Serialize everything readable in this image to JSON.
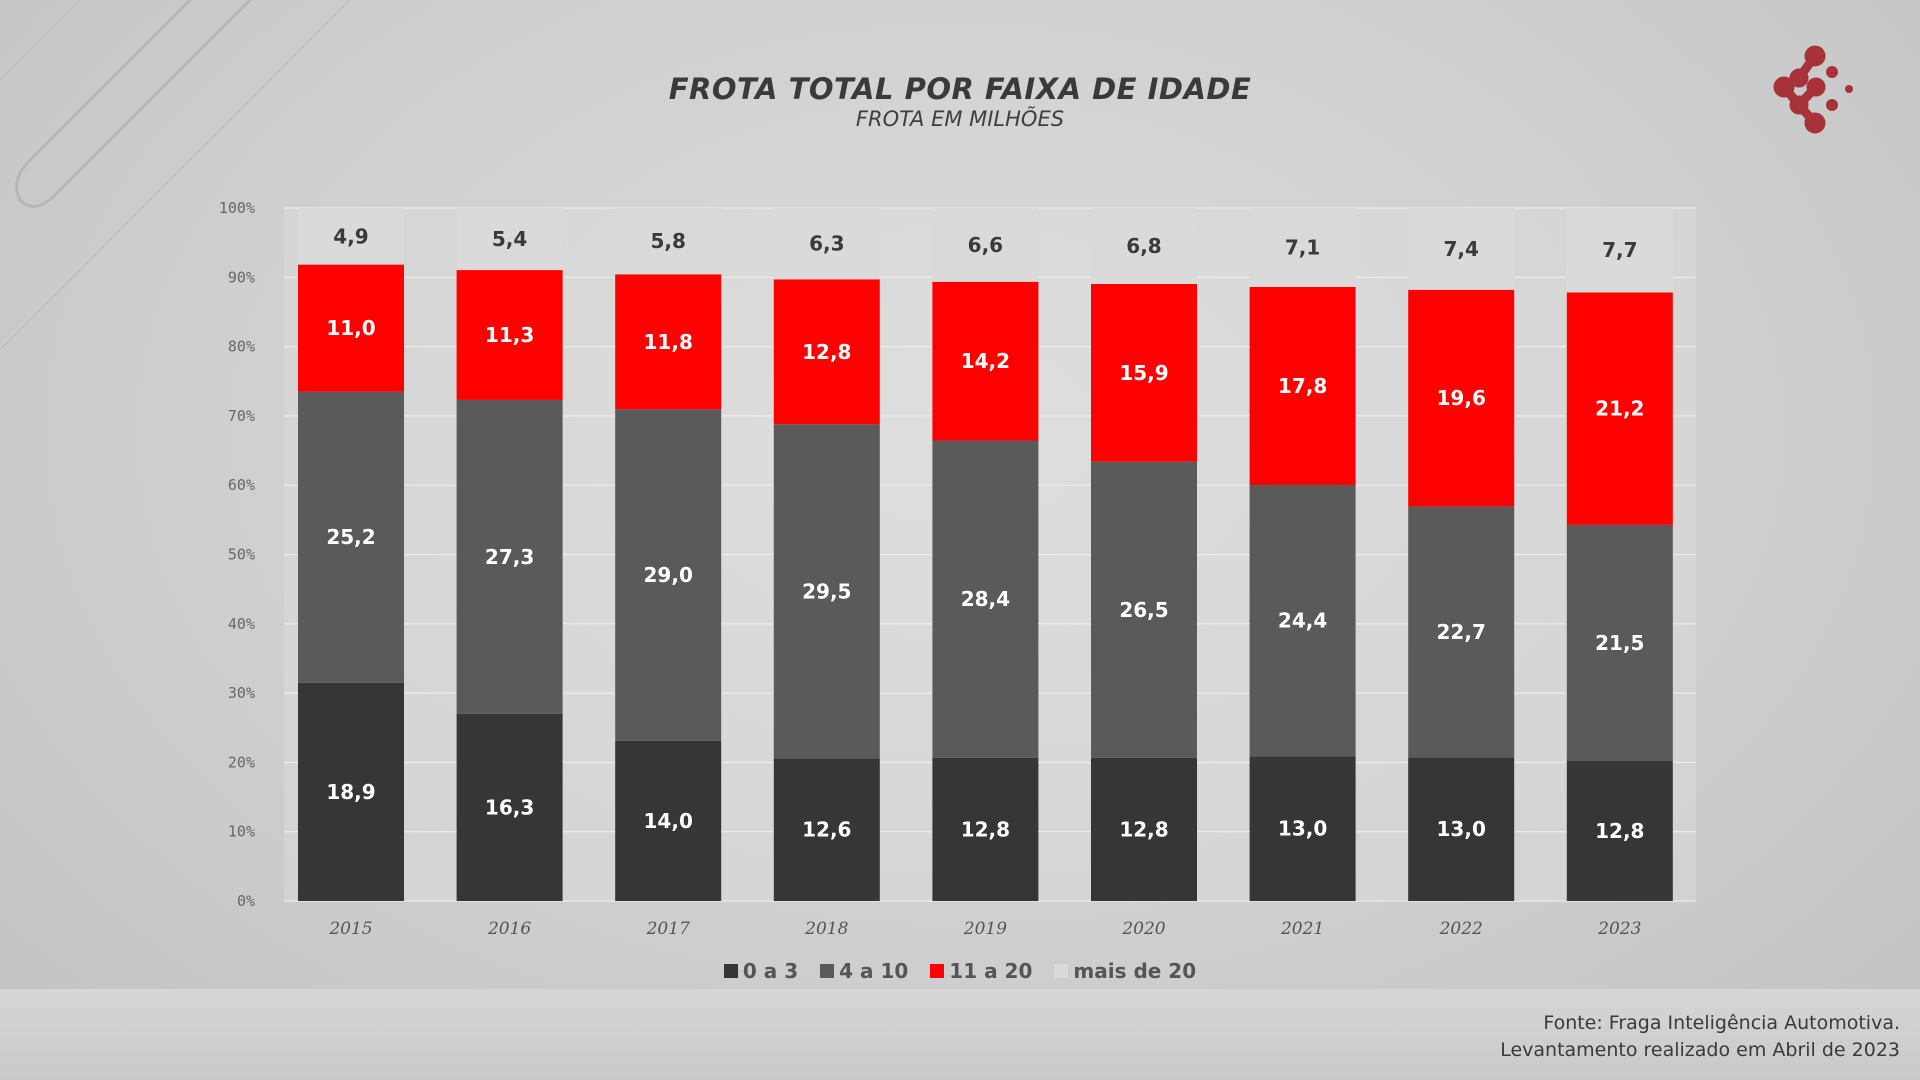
{
  "header": {
    "title": "FROTA TOTAL POR FAIXA DE IDADE",
    "subtitle": "FROTA EM MILHÕES"
  },
  "footer": {
    "line1": "Fonte: Fraga Inteligência Automotiva.",
    "line2": "Levantamento realizado em Abril de 2023"
  },
  "logo": {
    "color": "#a8323a"
  },
  "chart_data": {
    "type": "bar",
    "stacked": "100%",
    "categories": [
      "2015",
      "2016",
      "2017",
      "2018",
      "2019",
      "2020",
      "2021",
      "2022",
      "2023"
    ],
    "series": [
      {
        "name": "0 a 3",
        "color": "#383634",
        "values": [
          18.9,
          16.3,
          14.0,
          12.6,
          12.8,
          12.8,
          13.0,
          13.0,
          12.8
        ]
      },
      {
        "name": "4 a 10",
        "color": "#5a5a5a",
        "values": [
          25.2,
          27.3,
          29.0,
          29.5,
          28.4,
          26.5,
          24.4,
          22.7,
          21.5
        ]
      },
      {
        "name": "11 a 20",
        "color": "#ff0000",
        "values": [
          11.0,
          11.3,
          11.8,
          12.8,
          14.2,
          15.9,
          17.8,
          19.6,
          21.2
        ]
      },
      {
        "name": "mais de 20",
        "color": "#dadada",
        "values": [
          4.9,
          5.4,
          5.8,
          6.3,
          6.6,
          6.8,
          7.1,
          7.4,
          7.7
        ]
      }
    ],
    "y_ticks": [
      "0%",
      "10%",
      "20%",
      "30%",
      "40%",
      "50%",
      "60%",
      "70%",
      "80%",
      "90%",
      "100%"
    ],
    "ylim": [
      0,
      100
    ],
    "grid": true,
    "legend": "bottom",
    "data_labels": true
  }
}
